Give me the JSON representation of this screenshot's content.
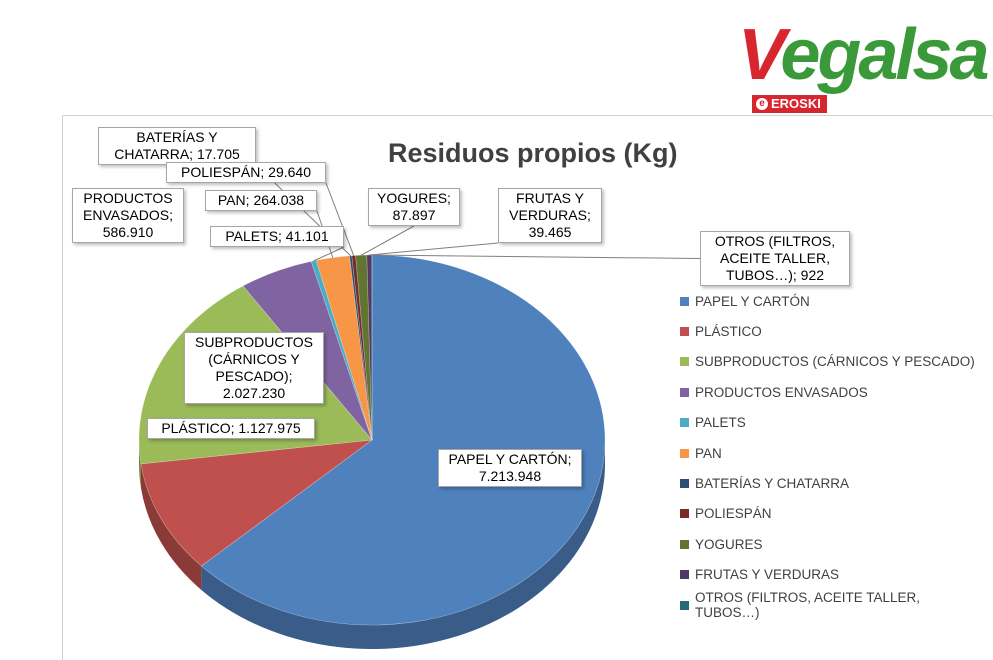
{
  "logo": {
    "brand": "Vegalsa",
    "sub": "EROSKI"
  },
  "chart_data": {
    "type": "pie",
    "title": "Residuos propios (Kg)",
    "legend_position": "right",
    "slices": [
      {
        "label": "PAPEL Y CARTÓN",
        "value": 7213948,
        "display": "7.213.948",
        "callout": "PAPEL Y CARTÓN;\n7.213.948",
        "color": "#4f81bd"
      },
      {
        "label": "PLÁSTICO",
        "value": 1127975,
        "display": "1.127.975",
        "callout": "PLÁSTICO; 1.127.975",
        "color": "#c0504d"
      },
      {
        "label": "SUBPRODUCTOS (CÁRNICOS Y PESCADO)",
        "value": 2027230,
        "display": "2.027.230",
        "callout": "SUBPRODUCTOS\n(CÁRNICOS Y\nPESCADO);\n2.027.230",
        "color": "#9bbb59"
      },
      {
        "label": "PRODUCTOS ENVASADOS",
        "value": 586910,
        "display": "586.910",
        "callout": "PRODUCTOS\nENVASADOS;\n586.910",
        "color": "#8064a2"
      },
      {
        "label": "PALETS",
        "value": 41101,
        "display": "41.101",
        "callout": "PALETS; 41.101",
        "color": "#4bacc6"
      },
      {
        "label": "PAN",
        "value": 264038,
        "display": "264.038",
        "callout": "PAN; 264.038",
        "color": "#f79646"
      },
      {
        "label": "BATERÍAS Y CHATARRA",
        "value": 17705,
        "display": "17.705",
        "callout": "BATERÍAS Y\nCHATARRA; 17.705",
        "color": "#2c4d75"
      },
      {
        "label": "POLIESPÁN",
        "value": 29640,
        "display": "29.640",
        "callout": "POLIESPÁN; 29.640",
        "color": "#772c2a"
      },
      {
        "label": "YOGURES",
        "value": 87897,
        "display": "87.897",
        "callout": "YOGURES;\n87.897",
        "color": "#5f7530"
      },
      {
        "label": "FRUTAS Y VERDURAS",
        "value": 39465,
        "display": "39.465",
        "callout": "FRUTAS Y\nVERDURAS;\n39.465",
        "color": "#4d3b62"
      },
      {
        "label": "OTROS (FILTROS, ACEITE TALLER, TUBOS…)",
        "value": 922,
        "display": "922",
        "callout": "OTROS (FILTROS,\nACEITE TALLER,\nTUBOS…); 922",
        "color": "#276a7c"
      }
    ]
  }
}
